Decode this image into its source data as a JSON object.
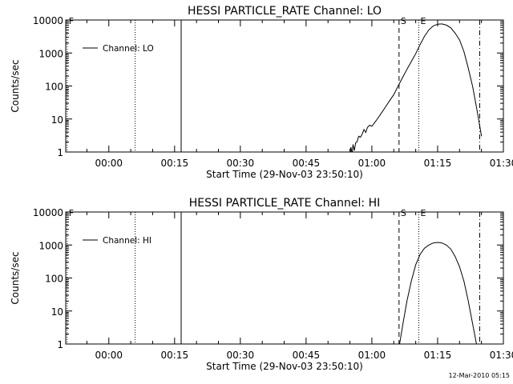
{
  "footer": "12-Mar-2010 05:15",
  "colors": {
    "background": "#ffffff",
    "foreground": "#000000"
  },
  "chart_data": [
    {
      "type": "line",
      "title": "HESSI PARTICLE_RATE Channel: LO",
      "xlabel": "Start Time (29-Nov-03 23:50:10)",
      "ylabel": "Counts/sec",
      "x_unit": "minutes after 00:00 (29-Nov-03)",
      "xlim": [
        -9.83,
        90.0
      ],
      "ylim": [
        1,
        10000
      ],
      "y_scale": "log",
      "x_tick_values": [
        0,
        15,
        30,
        45,
        60,
        75,
        90
      ],
      "x_tick_labels": [
        "00:00",
        "00:15",
        "00:30",
        "00:45",
        "01:00",
        "01:15",
        "01:30"
      ],
      "y_tick_values": [
        1,
        10,
        100,
        1000,
        10000
      ],
      "y_tick_labels": [
        "1",
        "10",
        "100",
        "1000",
        "10000"
      ],
      "legend": {
        "label": "Channel: LO",
        "placement": "top-left"
      },
      "markers": [
        {
          "label": "F",
          "x": -9.5,
          "style": "dotted"
        },
        {
          "label": "",
          "x": 6.0,
          "style": "dotted"
        },
        {
          "label": "",
          "x": 16.5,
          "style": "solid"
        },
        {
          "label": "S",
          "x": 66.2,
          "style": "dashed"
        },
        {
          "label": "E",
          "x": 70.7,
          "style": "dotted"
        },
        {
          "label": "",
          "x": 84.6,
          "style": "dashdot"
        }
      ],
      "series": [
        {
          "name": "Channel: LO",
          "x": [
            55.0,
            55.2,
            55.5,
            55.7,
            56.0,
            56.3,
            56.6,
            57.0,
            57.4,
            57.8,
            58.2,
            58.6,
            59.0,
            59.5,
            60.0,
            61.0,
            62.0,
            63.0,
            64.0,
            65.0,
            66.0,
            67.0,
            68.0,
            69.0,
            70.0,
            71.0,
            72.0,
            73.0,
            74.0,
            75.0,
            76.0,
            77.0,
            78.0,
            79.0,
            80.0,
            81.0,
            82.0,
            83.0,
            84.0,
            85.0
          ],
          "y": [
            0.75,
            1.4,
            0.9,
            1.7,
            1.1,
            1.9,
            2.0,
            3.0,
            2.8,
            3.5,
            4.8,
            3.9,
            5.6,
            6.5,
            6.0,
            9.0,
            14,
            22,
            35,
            55,
            100,
            180,
            320,
            550,
            950,
            1800,
            3200,
            5000,
            6600,
            7500,
            7600,
            7000,
            5800,
            4000,
            2500,
            1100,
            350,
            95,
            18,
            3.0
          ]
        }
      ]
    },
    {
      "type": "line",
      "title": "HESSI PARTICLE_RATE Channel: HI",
      "xlabel": "Start Time (29-Nov-03 23:50:10)",
      "ylabel": "Counts/sec",
      "x_unit": "minutes after 00:00 (29-Nov-03)",
      "xlim": [
        -9.83,
        90.0
      ],
      "ylim": [
        1,
        10000
      ],
      "y_scale": "log",
      "x_tick_values": [
        0,
        15,
        30,
        45,
        60,
        75,
        90
      ],
      "x_tick_labels": [
        "00:00",
        "00:15",
        "00:30",
        "00:45",
        "01:00",
        "01:15",
        "01:30"
      ],
      "y_tick_values": [
        1,
        10,
        100,
        1000,
        10000
      ],
      "y_tick_labels": [
        "1",
        "10",
        "100",
        "1000",
        "10000"
      ],
      "legend": {
        "label": "Channel: HI",
        "placement": "top-left"
      },
      "markers": [
        {
          "label": "F",
          "x": -9.5,
          "style": "dotted"
        },
        {
          "label": "",
          "x": 6.0,
          "style": "dotted"
        },
        {
          "label": "",
          "x": 16.5,
          "style": "solid"
        },
        {
          "label": "S",
          "x": 66.2,
          "style": "dashed"
        },
        {
          "label": "E",
          "x": 70.7,
          "style": "dotted"
        },
        {
          "label": "",
          "x": 84.6,
          "style": "dashdot"
        }
      ],
      "series": [
        {
          "name": "Channel: HI",
          "x": [
            66.2,
            66.7,
            67.2,
            68.0,
            69.0,
            70.0,
            71.0,
            72.0,
            73.0,
            74.0,
            75.0,
            76.0,
            77.0,
            78.0,
            79.0,
            80.0,
            81.0,
            82.0,
            83.0,
            84.0
          ],
          "y": [
            0.8,
            2.0,
            5.0,
            20,
            80,
            250,
            520,
            800,
            1000,
            1150,
            1200,
            1150,
            1000,
            750,
            450,
            220,
            80,
            20,
            4.0,
            0.8
          ]
        }
      ]
    }
  ]
}
